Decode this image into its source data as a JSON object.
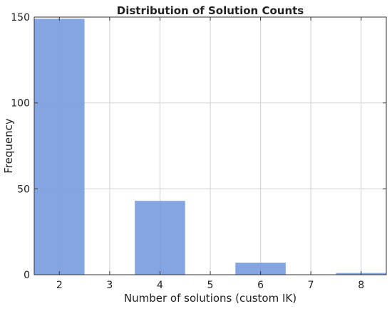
{
  "chart_data": {
    "type": "bar",
    "title": "Distribution of Solution Counts",
    "xlabel": "Number of solutions (custom IK)",
    "ylabel": "Frequency",
    "x_ticks": [
      2,
      3,
      4,
      5,
      6,
      7,
      8
    ],
    "y_ticks": [
      0,
      50,
      100,
      150
    ],
    "xlim": [
      1.5,
      8.5
    ],
    "ylim": [
      0,
      150
    ],
    "grid": true,
    "bar_color": "#7a9de0",
    "bar_width": 1.0,
    "bars": [
      {
        "x": 2,
        "value": 149
      },
      {
        "x": 4,
        "value": 43
      },
      {
        "x": 6,
        "value": 7
      },
      {
        "x": 8,
        "value": 1
      }
    ]
  }
}
